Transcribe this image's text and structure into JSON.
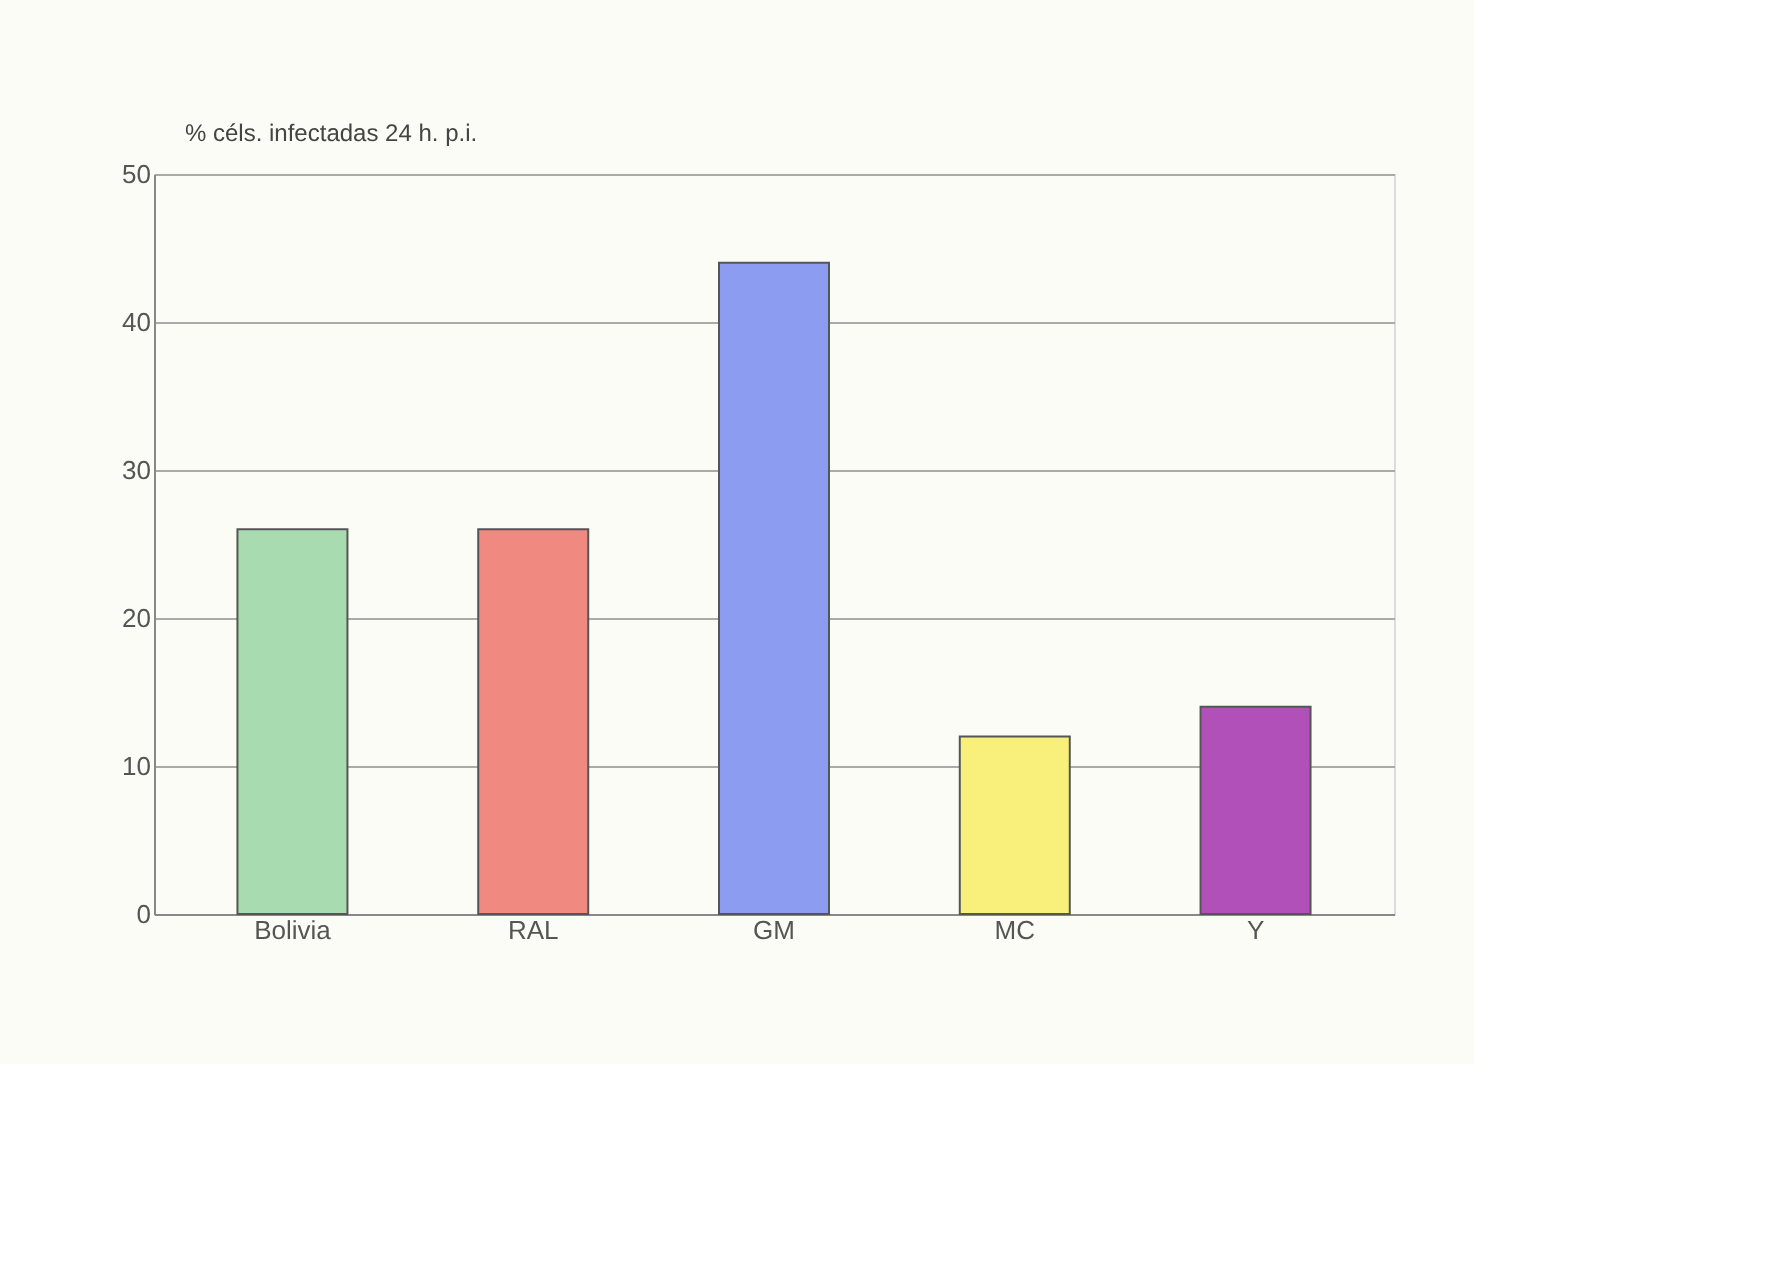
{
  "chart_data": {
    "type": "bar",
    "ylabel": "% céls. infectadas 24 h. p.i.",
    "categories": [
      "Bolivia",
      "RAL",
      "GM",
      "MC",
      "Y"
    ],
    "values": [
      26,
      26,
      44,
      12,
      14
    ],
    "colors": [
      "#a8dcb0",
      "#f08a80",
      "#8c9cf0",
      "#f8f07a",
      "#b050b8"
    ],
    "ylim": [
      0,
      50
    ],
    "yticks": [
      0,
      10,
      20,
      30,
      40,
      50
    ],
    "grid": "y"
  }
}
